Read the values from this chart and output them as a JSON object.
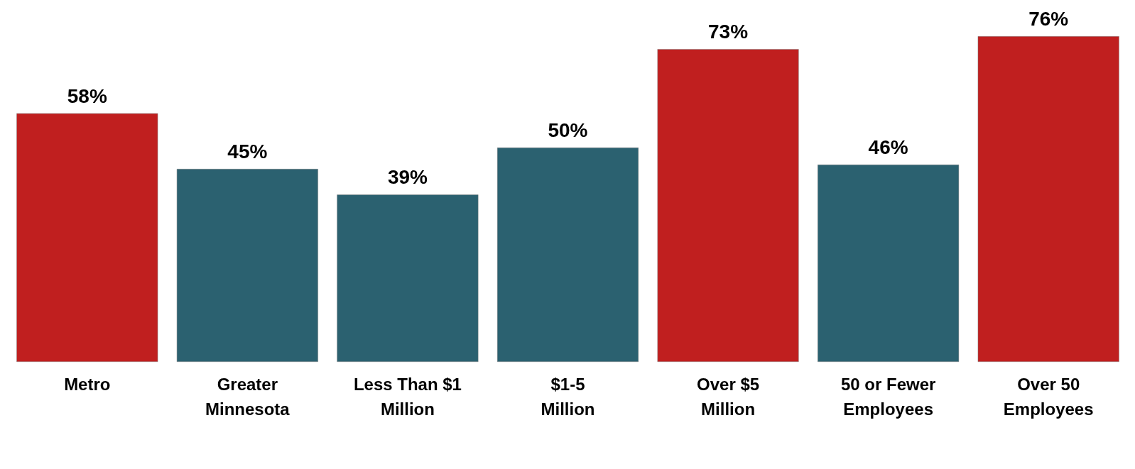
{
  "chart_data": {
    "type": "bar",
    "categories": [
      "Metro",
      "Greater\nMinnesota",
      "Less Than $1\nMillion",
      "$1-5\nMillion",
      "Over $5\nMillion",
      "50 or Fewer\nEmployees",
      "Over 50\nEmployees"
    ],
    "values": [
      58,
      45,
      39,
      50,
      73,
      46,
      76
    ],
    "value_labels": [
      "58%",
      "45%",
      "39%",
      "50%",
      "73%",
      "46%",
      "76%"
    ],
    "colors": [
      "#c01f1f",
      "#2b6170",
      "#2b6170",
      "#2b6170",
      "#c01f1f",
      "#2b6170",
      "#c01f1f"
    ]
  }
}
